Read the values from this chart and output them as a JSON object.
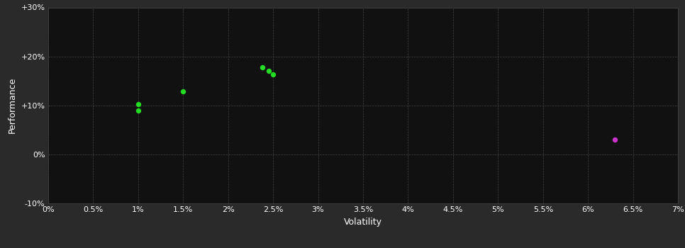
{
  "background_color": "#2a2a2a",
  "plot_bg_color": "#111111",
  "grid_color": "#444444",
  "grid_style": "--",
  "xlabel": "Volatility",
  "ylabel": "Performance",
  "xlim": [
    0.0,
    0.07
  ],
  "ylim": [
    -0.1,
    0.3
  ],
  "xticks": [
    0.0,
    0.005,
    0.01,
    0.015,
    0.02,
    0.025,
    0.03,
    0.035,
    0.04,
    0.045,
    0.05,
    0.055,
    0.06,
    0.065,
    0.07
  ],
  "xtick_labels": [
    "0%",
    "0.5%",
    "1%",
    "1.5%",
    "2%",
    "2.5%",
    "3%",
    "3.5%",
    "4%",
    "4.5%",
    "5%",
    "5.5%",
    "6%",
    "6.5%",
    "7%"
  ],
  "yticks": [
    -0.1,
    0.0,
    0.1,
    0.2,
    0.3
  ],
  "ytick_labels": [
    "-10%",
    "0%",
    "+10%",
    "+20%",
    "+30%"
  ],
  "green_points": [
    [
      0.01,
      0.102
    ],
    [
      0.01,
      0.09
    ],
    [
      0.015,
      0.128
    ],
    [
      0.0238,
      0.178
    ],
    [
      0.0245,
      0.17
    ],
    [
      0.025,
      0.163
    ]
  ],
  "magenta_points": [
    [
      0.063,
      0.03
    ]
  ],
  "green_color": "#22dd22",
  "magenta_color": "#cc33cc",
  "marker_size": 28,
  "tick_color": "#ffffff",
  "tick_fontsize": 8,
  "label_fontsize": 9,
  "label_color": "#ffffff"
}
